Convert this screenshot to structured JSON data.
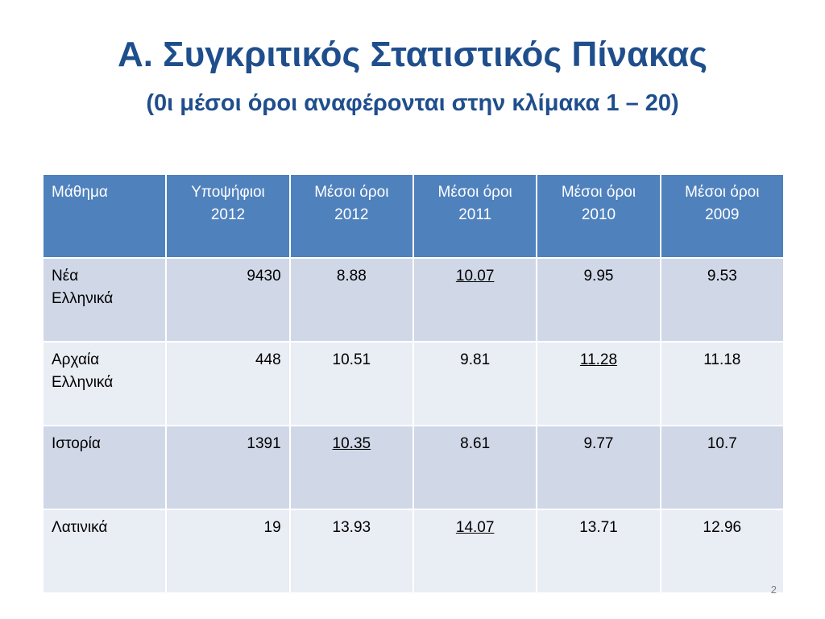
{
  "title": "Α. Συγκριτικός Στατιστικός Πίνακας",
  "subtitle": "(0ι μέσοι όροι αναφέρονται στην κλίμακα 1 – 20)",
  "table": {
    "headers": [
      {
        "line1": "Μάθημα",
        "line2": ""
      },
      {
        "line1": "Υποψήφιοι",
        "line2": "2012"
      },
      {
        "line1": "Μέσοι όροι",
        "line2": "2012"
      },
      {
        "line1": "Μέσοι όροι",
        "line2": "2011"
      },
      {
        "line1": "Μέσοι όροι",
        "line2": "2010"
      },
      {
        "line1": "Μέσοι όροι",
        "line2": "2009"
      }
    ],
    "rows": [
      {
        "subject_line1": "Νέα",
        "subject_line2": "Ελληνικά",
        "candidates": "9430",
        "avg2012": "8.88",
        "avg2011": "10.07",
        "avg2010": "9.95",
        "avg2009": "9.53"
      },
      {
        "subject_line1": "Αρχαία",
        "subject_line2": "Ελληνικά",
        "candidates": "448",
        "avg2012": "10.51",
        "avg2011": "9.81",
        "avg2010": "11.28",
        "avg2009": "11.18"
      },
      {
        "subject_line1": "Ιστορία",
        "subject_line2": "",
        "candidates": "1391",
        "avg2012": "10.35",
        "avg2011": "8.61",
        "avg2010": "9.77",
        "avg2009": "10.7"
      },
      {
        "subject_line1": "Λατινικά",
        "subject_line2": "",
        "candidates": "19",
        "avg2012": "13.93",
        "avg2011": "14.07",
        "avg2010": "13.71",
        "avg2009": "12.96"
      }
    ]
  },
  "page_number": "2",
  "colors": {
    "title": "#1f4e8c",
    "header_bg": "#4f81bd",
    "row_dark": "#d0d8e8",
    "row_light": "#e9edf4",
    "candidates_text": "#c00000"
  }
}
